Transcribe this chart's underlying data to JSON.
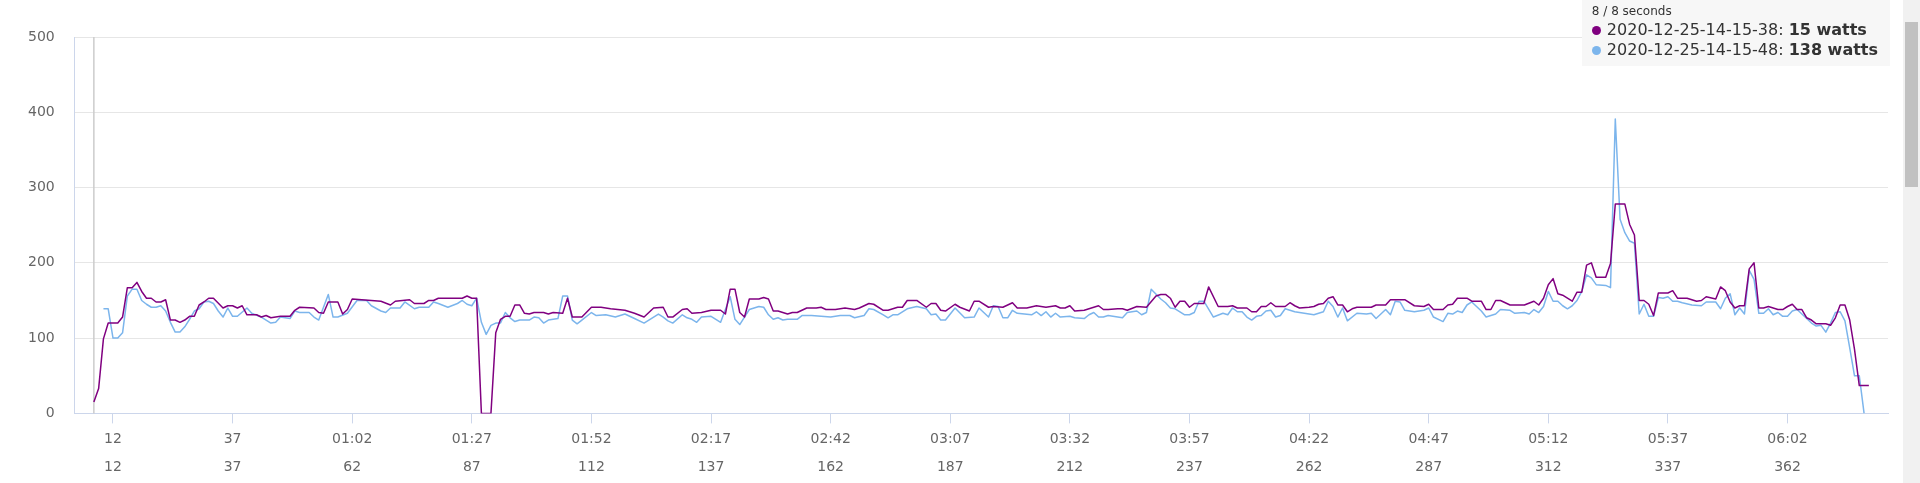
{
  "chart_data": {
    "type": "line",
    "legend_title": "8 / 8 seconds",
    "annotations": [
      "15 watts",
      "138 watts"
    ],
    "xlim": [
      4,
      383
    ],
    "ylim": [
      0,
      500
    ],
    "yticks": [
      0,
      100,
      200,
      300,
      400,
      500
    ],
    "xticks": [
      12,
      37,
      62,
      87,
      112,
      137,
      162,
      187,
      212,
      237,
      262,
      287,
      312,
      337,
      362
    ],
    "x2lim": [
      4,
      383
    ],
    "x2ticks": [
      12,
      37,
      {
        "value": 62,
        "label": "01:02"
      },
      {
        "value": 87,
        "label": "01:27"
      },
      {
        "value": 112,
        "label": "01:52"
      },
      {
        "value": 137,
        "label": "02:17"
      },
      {
        "value": 162,
        "label": "02:42"
      },
      {
        "value": 187,
        "label": "03:07"
      },
      {
        "value": 212,
        "label": "03:32"
      },
      {
        "value": 237,
        "label": "03:57"
      },
      {
        "value": 262,
        "label": "04:22"
      },
      {
        "value": 287,
        "label": "04:47"
      },
      {
        "value": 312,
        "label": "05:12"
      },
      {
        "value": 337,
        "label": "05:37"
      },
      {
        "value": 362,
        "label": "06:02"
      }
    ],
    "grid": "y",
    "legend": "top right",
    "marker": "none",
    "line_style": "solid",
    "ref_lines": [
      {
        "axis": "x",
        "value": 8,
        "color": "#cccccc"
      }
    ],
    "series": [
      {
        "name": "2020-12-25-14-15-38:",
        "color": "#800080",
        "x": [
          8,
          9,
          10,
          11,
          13,
          14,
          15,
          16,
          17,
          18,
          19,
          20,
          21,
          22,
          23,
          24,
          25,
          26,
          27,
          28,
          29,
          30,
          31,
          32,
          33,
          35,
          36,
          37,
          38,
          39,
          40,
          42,
          43,
          44,
          45,
          47,
          49,
          50,
          51,
          54,
          55,
          56,
          57,
          59,
          60,
          61,
          62,
          64,
          66,
          68,
          70,
          71,
          74,
          75,
          77,
          78,
          79,
          80,
          85,
          86,
          87,
          88,
          89,
          91,
          92,
          93,
          94,
          95,
          96,
          97,
          98,
          99,
          100,
          102,
          103,
          104,
          106,
          107,
          108,
          110,
          112,
          114,
          116,
          119,
          121,
          123,
          125,
          127,
          128,
          129,
          131,
          132,
          133,
          135,
          137,
          139,
          140,
          141,
          142,
          143,
          144,
          145,
          147,
          148,
          149,
          150,
          151,
          153,
          154,
          155,
          157,
          159,
          160,
          161,
          163,
          165,
          167,
          168,
          170,
          171,
          173,
          174,
          176,
          177,
          178,
          180,
          182,
          183,
          184,
          185,
          186,
          188,
          189,
          191,
          192,
          193,
          195,
          196,
          198,
          200,
          201,
          203,
          205,
          207,
          209,
          210,
          211,
          212,
          213,
          215,
          217,
          218,
          219,
          220,
          222,
          223,
          224,
          226,
          228,
          230,
          231,
          232,
          233,
          234,
          235,
          236,
          237,
          238,
          240,
          241,
          243,
          245,
          246,
          247,
          249,
          250,
          251,
          252,
          253,
          254,
          255,
          257,
          258,
          259,
          260,
          262,
          263,
          264,
          265,
          266,
          267,
          268,
          269,
          270,
          271,
          272,
          275,
          276,
          278,
          279,
          282,
          284,
          286,
          287,
          288,
          290,
          291,
          292,
          293,
          295,
          296,
          298,
          299,
          300,
          301,
          302,
          304,
          307,
          309,
          310,
          311,
          312,
          313,
          314,
          315,
          316,
          317,
          318,
          319,
          320,
          321,
          322,
          324,
          325,
          326,
          328,
          329,
          330,
          331,
          332,
          333,
          334,
          335,
          337,
          338,
          339,
          341,
          343,
          344,
          345,
          347,
          348,
          349,
          350,
          351,
          352,
          353,
          354,
          355,
          356,
          357,
          358,
          359,
          360,
          361,
          362,
          363,
          364,
          365,
          366,
          367,
          368,
          370,
          371,
          372,
          373,
          374,
          375,
          376,
          377,
          379
        ],
        "values": [
          15,
          33,
          99,
          120,
          120,
          128,
          167,
          167,
          174,
          162,
          153,
          153,
          148,
          148,
          151,
          124,
          124,
          121,
          124,
          129,
          129,
          144,
          148,
          153,
          153,
          140,
          143,
          143,
          140,
          143,
          131,
          131,
          128,
          130,
          127,
          129,
          129,
          137,
          141,
          140,
          134,
          133,
          148,
          148,
          132,
          138,
          152,
          151,
          150,
          149,
          144,
          149,
          151,
          146,
          146,
          150,
          150,
          153,
          153,
          156,
          153,
          153,
          0,
          0,
          107,
          125,
          129,
          129,
          144,
          144,
          133,
          132,
          134,
          134,
          132,
          134,
          133,
          153,
          128,
          128,
          141,
          141,
          139,
          137,
          133,
          128,
          140,
          141,
          128,
          128,
          138,
          139,
          133,
          134,
          137,
          137,
          132,
          165,
          165,
          134,
          128,
          152,
          152,
          154,
          152,
          136,
          136,
          132,
          134,
          134,
          140,
          140,
          141,
          138,
          138,
          140,
          138,
          140,
          146,
          145,
          137,
          137,
          141,
          141,
          150,
          150,
          141,
          146,
          146,
          137,
          136,
          145,
          141,
          136,
          149,
          149,
          141,
          142,
          141,
          147,
          140,
          140,
          143,
          141,
          143,
          140,
          140,
          143,
          136,
          137,
          141,
          143,
          138,
          138,
          139,
          139,
          137,
          142,
          141,
          156,
          158,
          158,
          153,
          141,
          149,
          149,
          141,
          146,
          146,
          168,
          142,
          142,
          143,
          140,
          140,
          135,
          135,
          142,
          142,
          147,
          142,
          142,
          147,
          143,
          140,
          141,
          142,
          145,
          146,
          153,
          155,
          144,
          144,
          135,
          139,
          141,
          141,
          144,
          144,
          151,
          151,
          143,
          142,
          145,
          138,
          138,
          144,
          145,
          153,
          153,
          149,
          149,
          138,
          138,
          150,
          150,
          144,
          144,
          149,
          144,
          153,
          171,
          179,
          159,
          157,
          153,
          149,
          161,
          161,
          197,
          200,
          181,
          181,
          199,
          278,
          278,
          251,
          237,
          150,
          150,
          145,
          130,
          160,
          160,
          163,
          153,
          153,
          149,
          150,
          155,
          152,
          168,
          163,
          148,
          140,
          143,
          143,
          192,
          200,
          140,
          140,
          142,
          140,
          138,
          138,
          142,
          145,
          138,
          138,
          127,
          124,
          119,
          119,
          117,
          127,
          144,
          144,
          124,
          85,
          37,
          37
        ]
      },
      {
        "name": "2020-12-25-14-15-48:",
        "color": "#7cb5ec",
        "x": [
          10,
          11,
          12,
          13,
          14,
          15,
          16,
          17,
          18,
          19,
          20,
          21,
          22,
          23,
          24,
          25,
          26,
          27,
          28,
          29,
          30,
          31,
          32,
          33,
          34,
          35,
          36,
          37,
          38,
          40,
          41,
          43,
          45,
          46,
          47,
          49,
          50,
          51,
          53,
          54,
          55,
          57,
          58,
          59,
          61,
          63,
          65,
          66,
          68,
          69,
          70,
          72,
          73,
          75,
          76,
          78,
          79,
          80,
          82,
          84,
          85,
          86,
          87,
          88,
          89,
          90,
          91,
          92,
          93,
          94,
          95,
          96,
          97,
          99,
          100,
          101,
          102,
          103,
          105,
          106,
          107,
          108,
          109,
          110,
          112,
          113,
          115,
          117,
          119,
          121,
          123,
          125,
          126,
          127,
          128,
          129,
          131,
          132,
          133,
          134,
          135,
          137,
          139,
          141,
          142,
          143,
          145,
          147,
          148,
          149,
          150,
          151,
          152,
          153,
          155,
          156,
          158,
          160,
          162,
          164,
          166,
          167,
          169,
          170,
          171,
          173,
          174,
          175,
          176,
          178,
          180,
          182,
          183,
          184,
          185,
          186,
          188,
          190,
          192,
          193,
          195,
          196,
          197,
          198,
          199,
          200,
          201,
          204,
          205,
          206,
          207,
          208,
          209,
          210,
          212,
          213,
          215,
          216,
          217,
          218,
          219,
          220,
          221,
          223,
          224,
          226,
          227,
          228,
          229,
          231,
          232,
          233,
          234,
          236,
          237,
          238,
          239,
          240,
          242,
          244,
          245,
          246,
          247,
          248,
          249,
          250,
          251,
          252,
          253,
          254,
          255,
          256,
          257,
          259,
          260,
          262,
          263,
          265,
          266,
          267,
          268,
          269,
          270,
          272,
          274,
          275,
          276,
          278,
          279,
          280,
          281,
          282,
          284,
          286,
          287,
          288,
          290,
          291,
          292,
          293,
          294,
          295,
          296,
          298,
          299,
          301,
          302,
          304,
          305,
          307,
          308,
          309,
          310,
          311,
          312,
          313,
          314,
          315,
          316,
          317,
          318,
          319,
          320,
          321,
          322,
          324,
          325,
          326,
          327,
          328,
          329,
          330,
          331,
          332,
          333,
          334,
          335,
          336,
          337,
          338,
          339,
          340,
          342,
          344,
          345,
          347,
          348,
          349,
          350,
          351,
          352,
          353,
          354,
          355,
          356,
          357,
          358,
          359,
          360,
          361,
          362,
          363,
          364,
          365,
          366,
          367,
          368,
          369,
          370,
          371,
          372,
          373,
          374,
          375,
          376,
          377,
          378
        ],
        "values": [
          139,
          139,
          100,
          100,
          107,
          156,
          165,
          165,
          150,
          145,
          141,
          141,
          143,
          136,
          121,
          108,
          108,
          115,
          125,
          136,
          139,
          148,
          149,
          146,
          136,
          128,
          140,
          129,
          129,
          140,
          133,
          128,
          120,
          121,
          128,
          126,
          136,
          134,
          134,
          128,
          124,
          158,
          128,
          128,
          133,
          150,
          150,
          143,
          136,
          134,
          140,
          140,
          148,
          139,
          141,
          141,
          148,
          146,
          141,
          146,
          150,
          145,
          143,
          153,
          121,
          105,
          117,
          120,
          120,
          134,
          127,
          122,
          124,
          124,
          128,
          127,
          120,
          124,
          126,
          156,
          156,
          124,
          119,
          124,
          134,
          130,
          131,
          128,
          132,
          126,
          120,
          128,
          132,
          128,
          123,
          120,
          131,
          127,
          125,
          121,
          128,
          129,
          121,
          155,
          125,
          118,
          138,
          142,
          141,
          131,
          125,
          127,
          124,
          125,
          125,
          130,
          130,
          129,
          128,
          130,
          130,
          127,
          130,
          139,
          138,
          131,
          127,
          131,
          131,
          139,
          142,
          139,
          131,
          132,
          124,
          124,
          140,
          127,
          128,
          140,
          128,
          143,
          142,
          127,
          127,
          137,
          133,
          131,
          135,
          130,
          135,
          128,
          133,
          128,
          129,
          127,
          126,
          131,
          134,
          128,
          128,
          130,
          129,
          127,
          134,
          136,
          131,
          134,
          165,
          152,
          147,
          140,
          139,
          131,
          131,
          134,
          149,
          149,
          128,
          133,
          131,
          140,
          135,
          135,
          128,
          124,
          129,
          130,
          136,
          137,
          128,
          130,
          139,
          135,
          134,
          132,
          131,
          135,
          149,
          142,
          128,
          140,
          123,
          133,
          132,
          133,
          126,
          138,
          131,
          149,
          148,
          137,
          135,
          137,
          140,
          128,
          122,
          133,
          132,
          136,
          134,
          144,
          148,
          136,
          128,
          132,
          138,
          137,
          133,
          134,
          132,
          138,
          134,
          142,
          162,
          149,
          149,
          143,
          139,
          143,
          150,
          162,
          184,
          180,
          171,
          170,
          167,
          391,
          258,
          240,
          229,
          226,
          132,
          145,
          129,
          129,
          154,
          153,
          155,
          149,
          149,
          147,
          144,
          143,
          148,
          148,
          139,
          153,
          159,
          131,
          140,
          132,
          190,
          178,
          133,
          133,
          139,
          131,
          134,
          129,
          129,
          136,
          138,
          132,
          126,
          120,
          116,
          117,
          108,
          120,
          134,
          135,
          123,
          87,
          50,
          50,
          0
        ]
      }
    ]
  }
}
